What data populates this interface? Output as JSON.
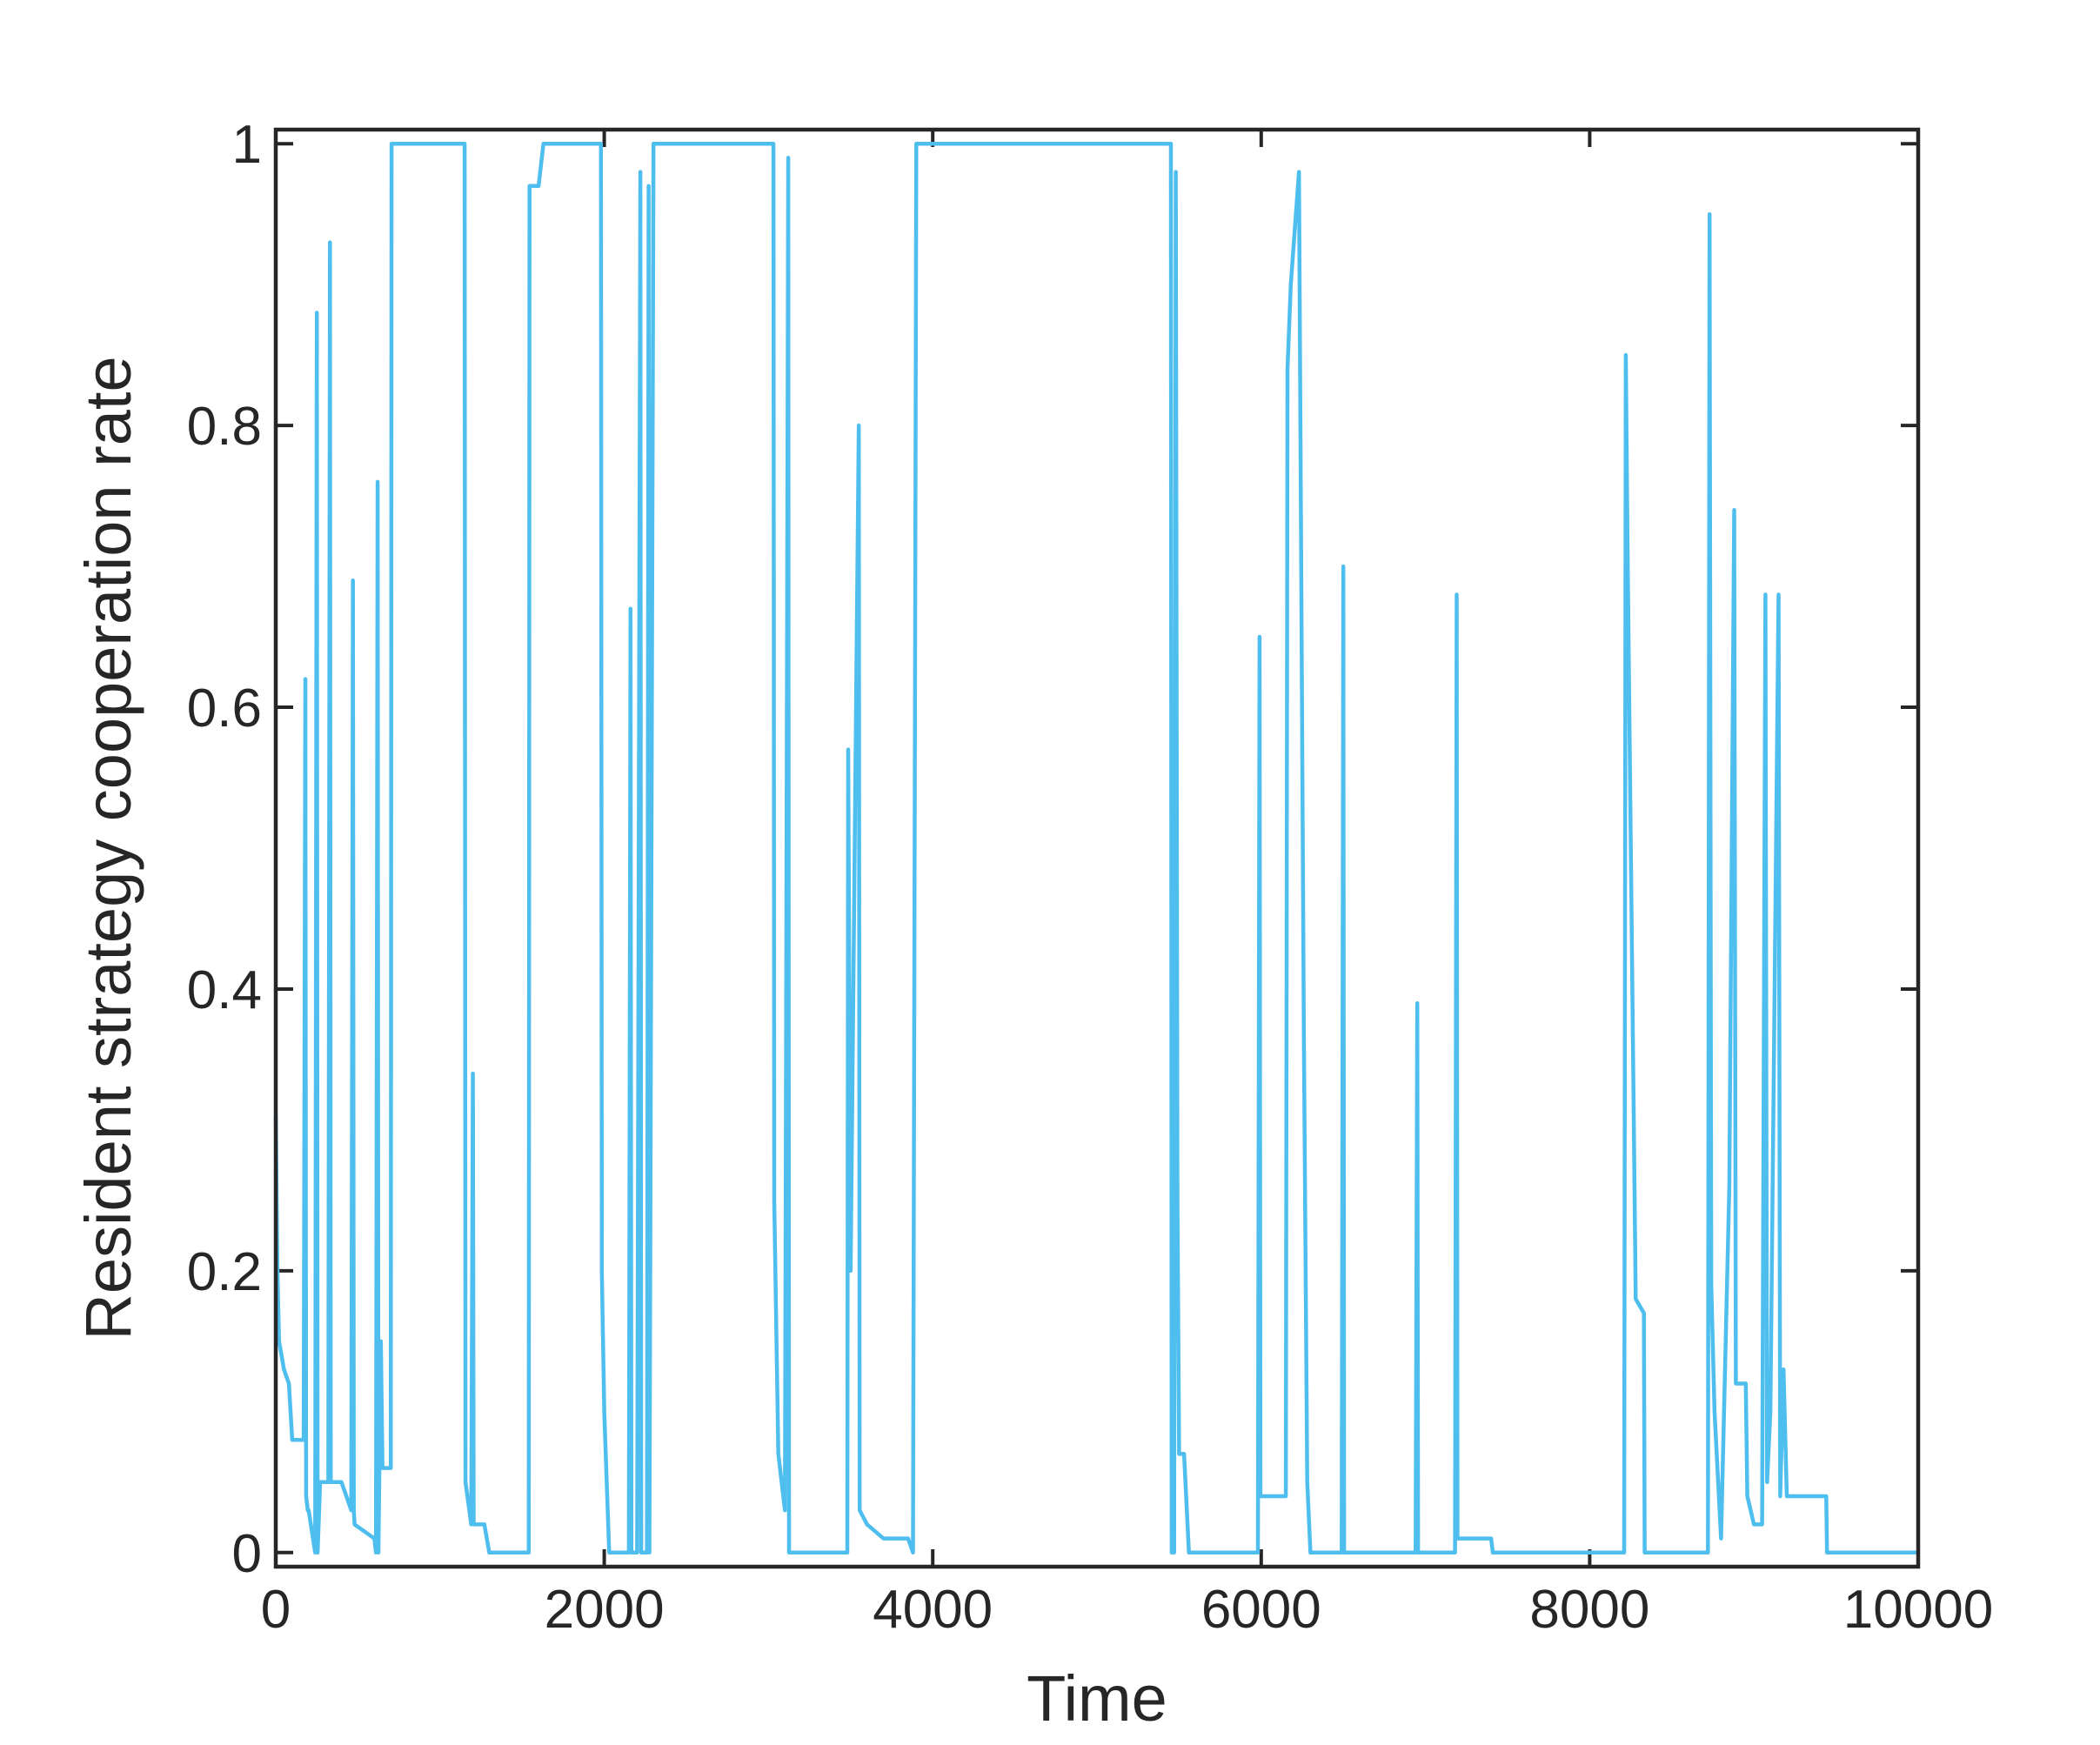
{
  "chart_data": {
    "type": "line",
    "xlabel": "Time",
    "ylabel": "Resident strategy cooperation rate",
    "xlim": [
      0,
      10000
    ],
    "ylim": [
      -0.01,
      1.01
    ],
    "xticks": [
      0,
      2000,
      4000,
      6000,
      8000,
      10000
    ],
    "yticks": [
      0,
      0.2,
      0.4,
      0.6,
      0.8,
      1
    ],
    "grid": false,
    "x": [
      0,
      10,
      20,
      50,
      80,
      100,
      170,
      180,
      185,
      195,
      200,
      240,
      250,
      255,
      270,
      320,
      330,
      335,
      400,
      460,
      470,
      475,
      480,
      600,
      610,
      620,
      625,
      640,
      650,
      660,
      700,
      705,
      1150,
      1155,
      1190,
      1200,
      1205,
      1270,
      1300,
      1540,
      1545,
      1600,
      1630,
      1980,
      1985,
      2000,
      2030,
      2150,
      2160,
      2165,
      2200,
      2220,
      2225,
      2260,
      2270,
      2275,
      2300,
      3030,
      3035,
      3060,
      3100,
      3120,
      3125,
      3150,
      3480,
      3485,
      3500,
      3550,
      3555,
      3600,
      3700,
      3850,
      3880,
      3900,
      5450,
      5455,
      5470,
      5480,
      5490,
      5500,
      5530,
      5560,
      5580,
      5980,
      5990,
      5995,
      6000,
      6150,
      6160,
      6180,
      6230,
      6260,
      6280,
      6300,
      6490,
      6500,
      6505,
      6940,
      6950,
      6955,
      7180,
      7190,
      7195,
      7400,
      7410,
      8210,
      8220,
      8230,
      8280,
      8330,
      8335,
      8720,
      8730,
      8740,
      8760,
      8800,
      8850,
      8880,
      8890,
      8950,
      8960,
      9000,
      9050,
      9070,
      9080,
      9100,
      9150,
      9160,
      9180,
      9200,
      9440,
      9445,
      10000
    ],
    "series": [
      {
        "name": "cooperation rate",
        "color": "#4DBEEE",
        "values": [
          0.31,
          0.2,
          0.15,
          0.13,
          0.12,
          0.08,
          0.08,
          0.62,
          0.04,
          0.03,
          0.03,
          0.0,
          0.88,
          0.0,
          0.05,
          0.05,
          0.93,
          0.05,
          0.05,
          0.03,
          0.69,
          0.03,
          0.02,
          0.01,
          0.0,
          0.76,
          0.0,
          0.15,
          0.06,
          0.06,
          0.06,
          1,
          1,
          0.05,
          0.02,
          0.34,
          0.02,
          0.02,
          0.0,
          0.0,
          0.97,
          0.97,
          1,
          1,
          0.2,
          0.1,
          0.0,
          0.0,
          0.67,
          0.0,
          0.0,
          0.98,
          0.0,
          0.0,
          0.97,
          0.0,
          1,
          1,
          0.25,
          0.07,
          0.03,
          0.99,
          0.0,
          0.0,
          0.0,
          0.57,
          0.2,
          0.8,
          0.03,
          0.02,
          0.01,
          0.01,
          0.0,
          1,
          1,
          0.0,
          0.0,
          0.98,
          0.25,
          0.07,
          0.07,
          0.0,
          0.0,
          0.0,
          0.65,
          0.04,
          0.04,
          0.04,
          0.84,
          0.9,
          0.98,
          0.36,
          0.05,
          0.0,
          0.0,
          0.7,
          0.0,
          0.0,
          0.39,
          0.0,
          0.0,
          0.68,
          0.01,
          0.01,
          0.0,
          0.0,
          0.85,
          0.72,
          0.18,
          0.17,
          0.0,
          0.0,
          0.95,
          0.19,
          0.1,
          0.01,
          0.26,
          0.74,
          0.12,
          0.12,
          0.04,
          0.02,
          0.02,
          0.68,
          0.05,
          0.1,
          0.68,
          0.04,
          0.13,
          0.04,
          0.04,
          0.0,
          0.0
        ]
      }
    ]
  }
}
